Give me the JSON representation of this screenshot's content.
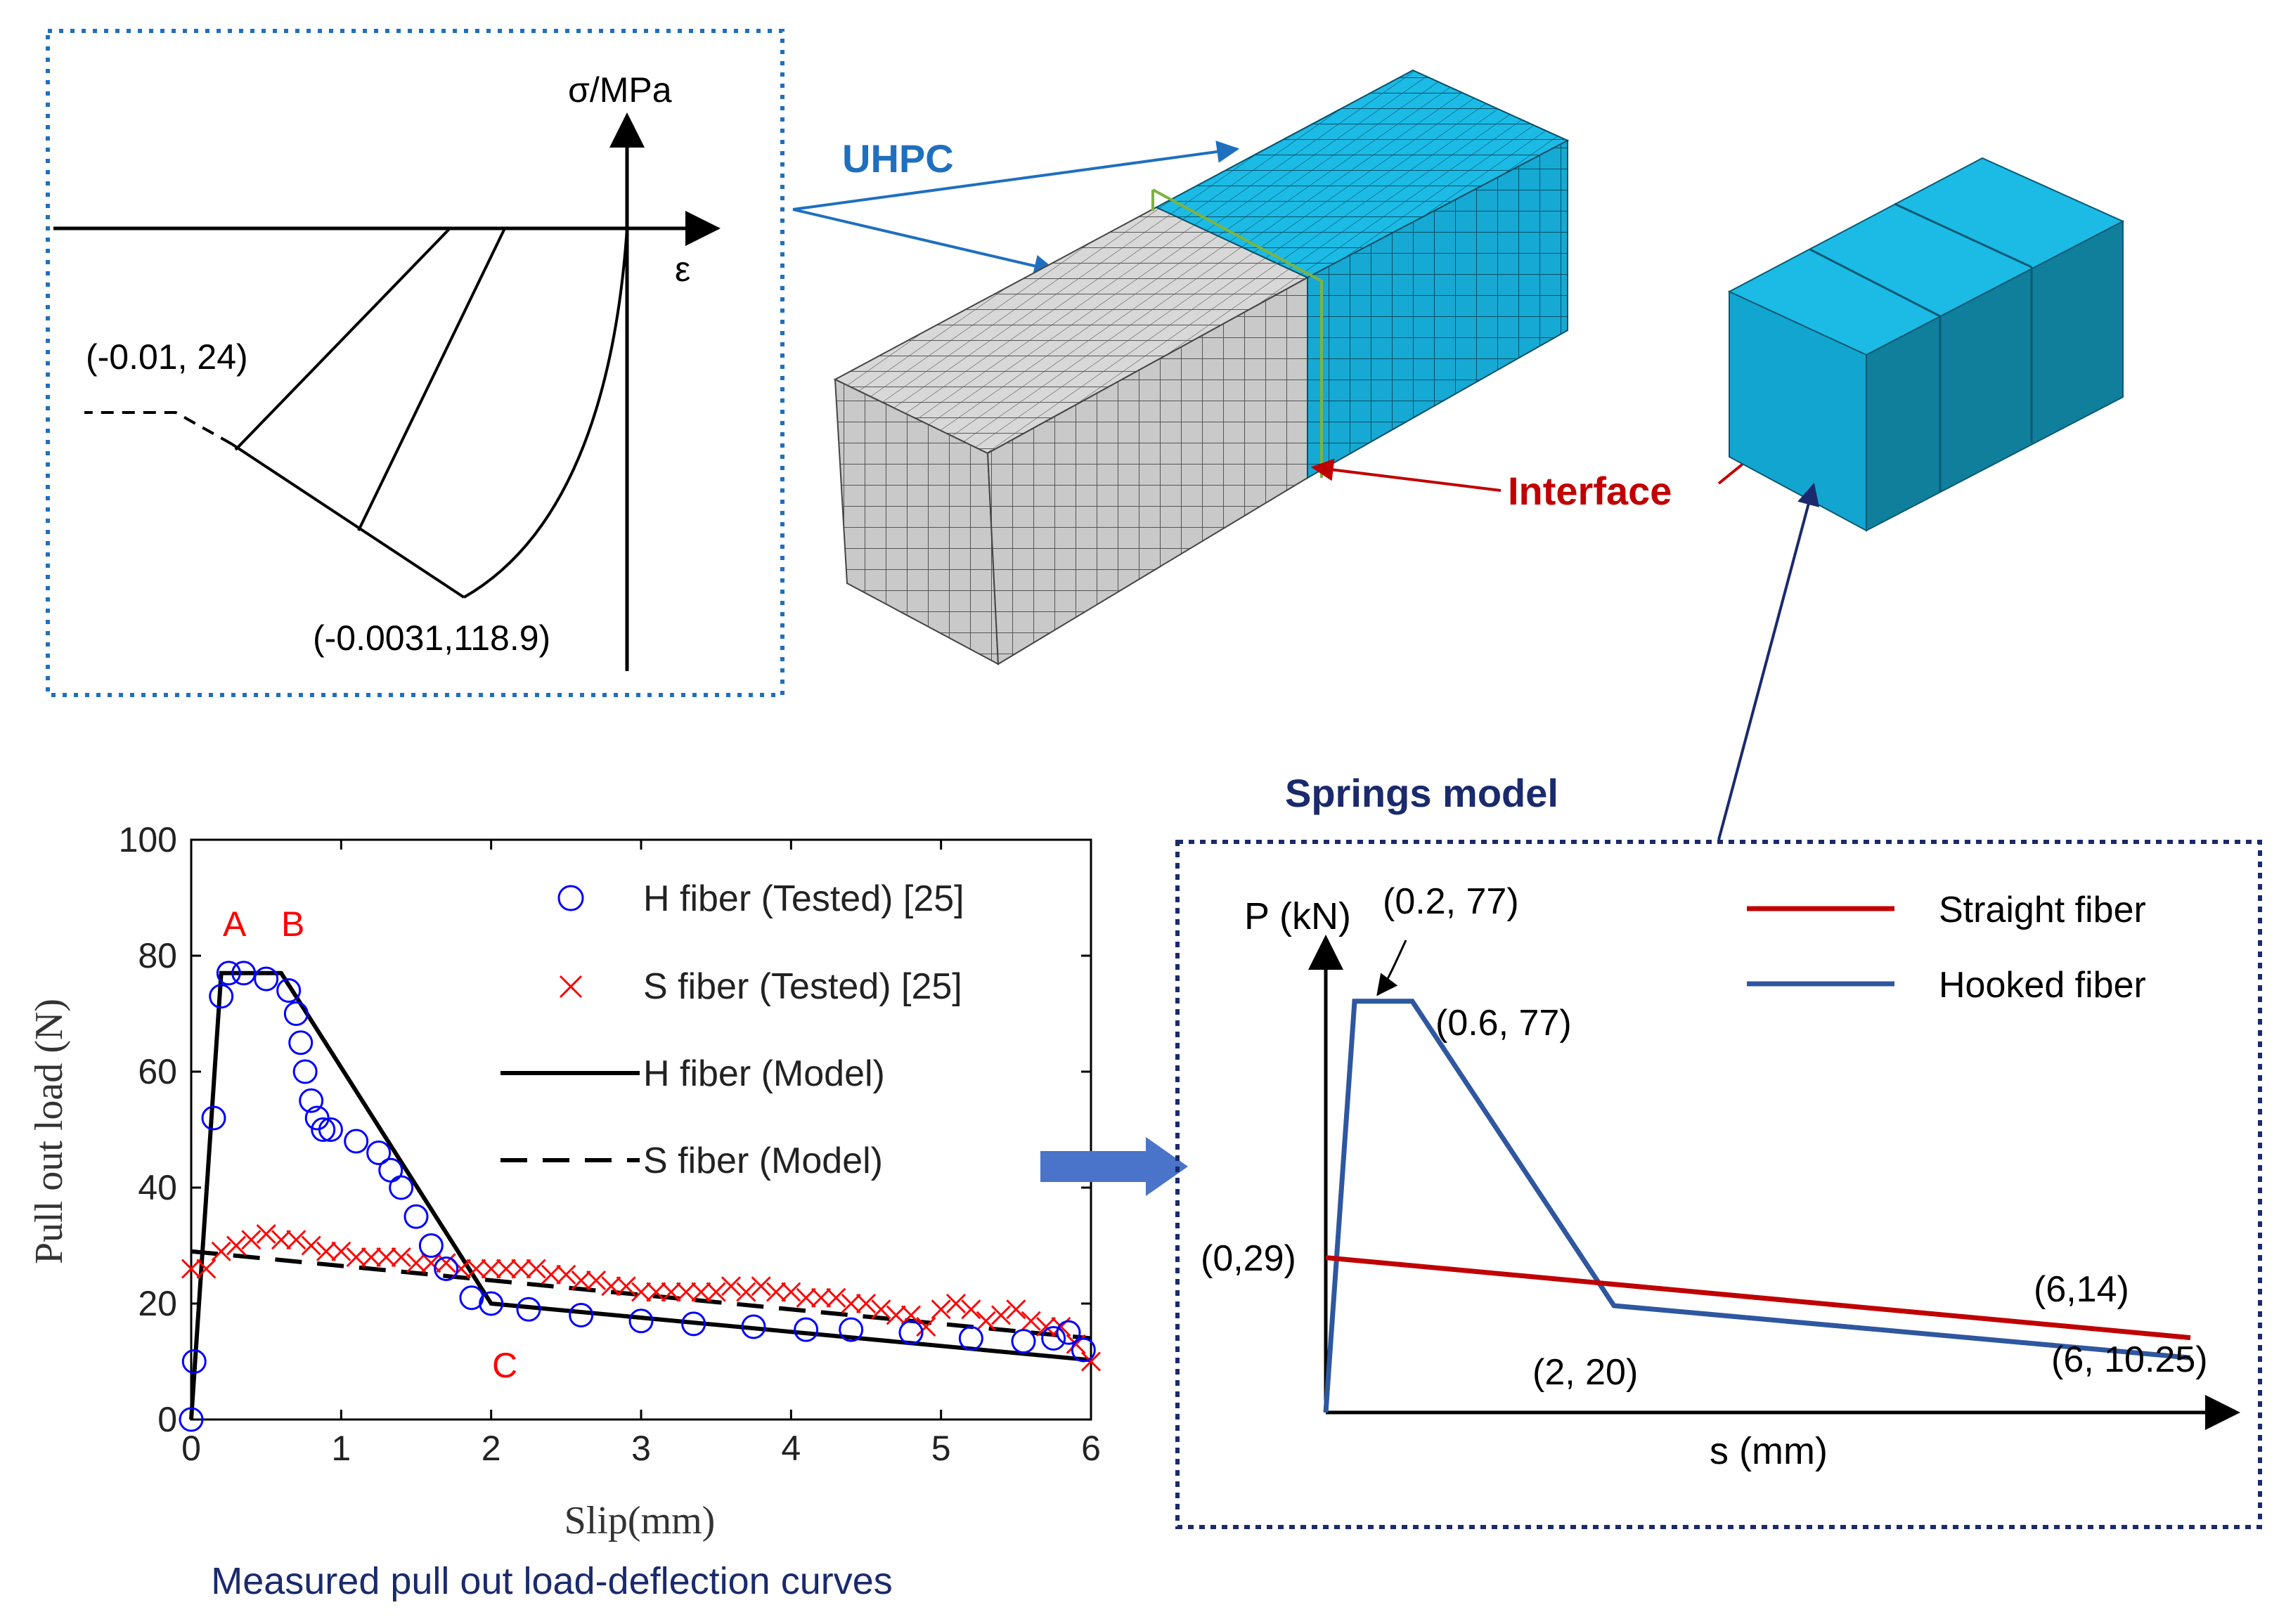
{
  "stress_strain": {
    "y_label": "σ/MPa",
    "x_label": "ε",
    "point_tension": "(-0.01,  24)",
    "point_peak": "(-0.0031,118.9)"
  },
  "mesh": {
    "uhpc_label": "UHPC",
    "interface_label": "Interface",
    "springs_label": "Springs model"
  },
  "pullout_chart": {
    "type": "scatter",
    "caption": "Measured pull out load-deflection curves",
    "xlabel": "Slip(mm)",
    "ylabel": "Pull out load (N)",
    "xlim": [
      0,
      6
    ],
    "ylim": [
      0,
      100
    ],
    "x_ticks": [
      "0",
      "1",
      "2",
      "3",
      "4",
      "5",
      "6"
    ],
    "y_ticks": [
      "0",
      "20",
      "40",
      "60",
      "80",
      "100"
    ],
    "point_labels": {
      "a": "A",
      "b": "B",
      "c": "C"
    },
    "legend": {
      "h_tested": "H fiber (Tested) [25]",
      "s_tested": "S fiber (Tested) [25]",
      "h_model": "H fiber (Model)",
      "s_model": "S fiber (Model)"
    },
    "colors": {
      "h_tested": "#0000ff",
      "s_tested": "#ff0000",
      "model": "#000000",
      "labels": "#ff0000"
    }
  },
  "chart_data": {
    "type": "scatter",
    "series": [
      {
        "name": "H fiber (Tested) [25]",
        "marker": "circle",
        "x": [
          0,
          0.02,
          0.15,
          0.2,
          0.25,
          0.35,
          0.5,
          0.65,
          0.7,
          0.73,
          0.76,
          0.8,
          0.84,
          0.88,
          0.93,
          1.1,
          1.25,
          1.33,
          1.4,
          1.5,
          1.6,
          1.7,
          1.87,
          2.0,
          2.25,
          2.6,
          3.0,
          3.35,
          3.75,
          4.1,
          4.4,
          4.8,
          5.2,
          5.55,
          5.75,
          5.85,
          5.95
        ],
        "y": [
          0,
          10,
          52,
          73,
          77,
          77,
          76,
          74,
          70,
          65,
          60,
          55,
          52,
          50,
          50,
          48,
          46,
          43,
          40,
          35,
          30,
          26,
          21,
          20,
          19,
          18,
          17,
          16.5,
          16,
          15.5,
          15.5,
          15,
          14,
          13.5,
          14,
          15,
          12
        ]
      },
      {
        "name": "S fiber (Tested) [25]",
        "marker": "x",
        "x": [
          0,
          0.1,
          0.2,
          0.3,
          0.4,
          0.5,
          0.6,
          0.7,
          0.8,
          0.9,
          1.0,
          1.1,
          1.2,
          1.3,
          1.4,
          1.5,
          1.6,
          1.7,
          1.8,
          1.9,
          2.0,
          2.1,
          2.2,
          2.3,
          2.4,
          2.5,
          2.6,
          2.7,
          2.8,
          2.9,
          3.0,
          3.1,
          3.2,
          3.3,
          3.4,
          3.5,
          3.6,
          3.7,
          3.8,
          3.9,
          4.0,
          4.1,
          4.2,
          4.3,
          4.4,
          4.5,
          4.6,
          4.7,
          4.8,
          4.9,
          5.0,
          5.1,
          5.2,
          5.3,
          5.4,
          5.5,
          5.6,
          5.7,
          5.8,
          5.9,
          6.0
        ],
        "y": [
          26,
          26,
          29,
          30,
          31,
          32,
          31,
          31,
          30,
          29,
          29,
          28,
          28,
          28,
          28,
          27,
          27,
          27,
          26,
          26,
          26,
          26,
          26,
          26,
          25,
          25,
          24,
          24,
          23,
          23,
          22,
          22,
          22,
          22,
          22,
          22,
          23,
          22,
          23,
          22,
          22,
          21,
          21,
          21,
          20,
          20,
          19,
          18,
          18,
          16,
          19,
          20,
          19,
          17,
          18,
          19,
          17,
          16,
          16,
          13,
          10
        ]
      },
      {
        "name": "H fiber (Model)",
        "line": "solid",
        "x": [
          0,
          0.2,
          0.6,
          2,
          6
        ],
        "y": [
          0,
          77,
          77,
          20,
          10.25
        ]
      },
      {
        "name": "S fiber (Model)",
        "line": "dashed",
        "x": [
          0,
          6
        ],
        "y": [
          29,
          14
        ]
      }
    ]
  },
  "springs_chart": {
    "ylabel": "P (kN)",
    "xlabel": "s (mm)",
    "legend": {
      "straight": "Straight fiber",
      "hooked": "Hooked fiber"
    },
    "colors": {
      "straight": "#c00000",
      "hooked": "#2e57a0"
    },
    "annotations": {
      "peak_start": "(0.2, 77)",
      "peak_end": "(0.6, 77)",
      "straight_start": "(0,29)",
      "straight_end": "(6,14)",
      "hooked_knee": "(2, 20)",
      "hooked_end": "(6, 10.25)"
    },
    "hooked": {
      "x": [
        0,
        0.2,
        0.6,
        2,
        6
      ],
      "y": [
        0,
        77,
        77,
        20,
        10.25
      ]
    },
    "straight": {
      "x": [
        0,
        6
      ],
      "y": [
        29,
        14
      ]
    }
  }
}
